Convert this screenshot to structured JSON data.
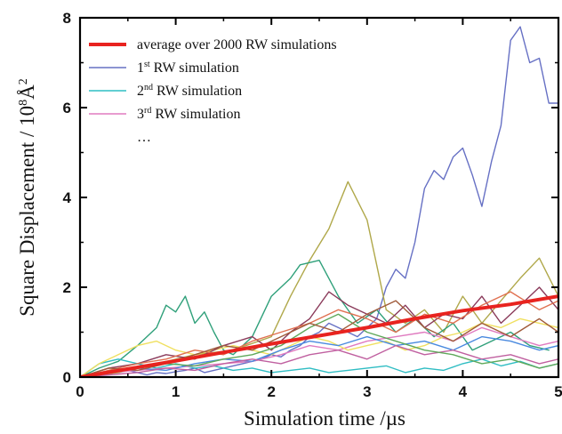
{
  "chart_data": {
    "type": "line",
    "title": "",
    "xlabel": "Simulation time /µs",
    "ylabel_main": "Square Displacement / 10",
    "ylabel_sup": "8",
    "ylabel_unit": "Å",
    "ylabel_unit_sup": "2",
    "xlim": [
      0,
      5
    ],
    "ylim": [
      0,
      8
    ],
    "x_ticks": [
      "0",
      "1",
      "2",
      "3",
      "4",
      "5"
    ],
    "y_ticks": [
      "0",
      "2",
      "4",
      "6",
      "8"
    ],
    "legend_position": "top-left",
    "legend_entries": [
      {
        "pre": "average over 2000 RW simulations",
        "sup": "",
        "post": "",
        "color": "#e8231f"
      },
      {
        "pre": "1",
        "sup": "st",
        "post": " RW simulation",
        "color": "#6670c4"
      },
      {
        "pre": "2",
        "sup": "nd",
        "post": " RW simulation",
        "color": "#2fbdc3"
      },
      {
        "pre": "3",
        "sup": "rd",
        "post": " RW simulation",
        "color": "#e07bc0"
      },
      {
        "pre": "…",
        "sup": "",
        "post": "",
        "color": ""
      }
    ],
    "series": [
      {
        "name": "average over 2000 RW simulations",
        "color": "#e8231f",
        "width": 4,
        "x": [
          0,
          0.5,
          1,
          1.5,
          2,
          2.5,
          3,
          3.5,
          4,
          4.5,
          5
        ],
        "y": [
          0,
          0.18,
          0.36,
          0.55,
          0.74,
          0.92,
          1.1,
          1.3,
          1.48,
          1.62,
          1.8
        ]
      },
      {
        "name": "1st RW simulation",
        "color": "#6670c4",
        "width": 1.4,
        "x": [
          0,
          0.1,
          0.2,
          0.3,
          0.4,
          0.5,
          0.6,
          0.7,
          0.8,
          0.9,
          1.0,
          1.1,
          1.2,
          1.3,
          1.4,
          1.5,
          1.6,
          1.7,
          1.8,
          1.9,
          2.0,
          2.1,
          2.2,
          2.3,
          2.4,
          2.5,
          2.6,
          2.7,
          2.8,
          2.9,
          3.0,
          3.1,
          3.2,
          3.3,
          3.4,
          3.5,
          3.6,
          3.7,
          3.8,
          3.9,
          4.0,
          4.1,
          4.2,
          4.3,
          4.4,
          4.5,
          4.6,
          4.7,
          4.8,
          4.9,
          5.0
        ],
        "y": [
          0.0,
          0.05,
          0.08,
          0.12,
          0.1,
          0.15,
          0.1,
          0.05,
          0.1,
          0.08,
          0.12,
          0.15,
          0.2,
          0.1,
          0.15,
          0.2,
          0.25,
          0.3,
          0.35,
          0.4,
          0.5,
          0.45,
          0.6,
          0.7,
          0.9,
          1.0,
          1.2,
          1.1,
          1.0,
          0.9,
          1.1,
          1.3,
          2.0,
          2.4,
          2.2,
          3.0,
          4.2,
          4.6,
          4.4,
          4.9,
          5.1,
          4.5,
          3.8,
          4.8,
          5.6,
          7.5,
          7.8,
          7.0,
          7.1,
          6.1,
          6.1
        ]
      },
      {
        "name": "",
        "color": "#b0a84a",
        "width": 1.4,
        "x": [
          0,
          0.4,
          0.8,
          1.2,
          1.6,
          2.0,
          2.2,
          2.4,
          2.6,
          2.8,
          3.0,
          3.1,
          3.2,
          3.4,
          3.6,
          3.8,
          4.0,
          4.2,
          4.4,
          4.6,
          4.8,
          5.0
        ],
        "y": [
          0,
          0.1,
          0.3,
          0.5,
          0.6,
          0.9,
          1.8,
          2.6,
          3.3,
          4.35,
          3.5,
          2.5,
          1.5,
          1.2,
          1.5,
          1.0,
          1.8,
          1.2,
          1.7,
          2.2,
          2.65,
          1.8
        ]
      },
      {
        "name": "",
        "color": "#2fa07a",
        "width": 1.4,
        "x": [
          0,
          0.2,
          0.4,
          0.6,
          0.8,
          0.9,
          1.0,
          1.1,
          1.2,
          1.3,
          1.4,
          1.5,
          1.6,
          1.8,
          2.0,
          2.2,
          2.3,
          2.5,
          2.7,
          2.9,
          3.1,
          3.3,
          3.5,
          3.7,
          3.9,
          4.1,
          4.3,
          4.5,
          4.7,
          4.9
        ],
        "y": [
          0,
          0.2,
          0.35,
          0.7,
          1.1,
          1.6,
          1.45,
          1.8,
          1.2,
          1.45,
          1.0,
          0.6,
          0.5,
          0.9,
          1.8,
          2.2,
          2.5,
          2.6,
          1.8,
          1.2,
          1.5,
          1.0,
          1.3,
          0.9,
          1.2,
          0.6,
          0.8,
          1.0,
          0.7,
          0.6
        ]
      },
      {
        "name": "2nd RW simulation",
        "color": "#2fbdc3",
        "width": 1.4,
        "x": [
          0,
          0.2,
          0.4,
          0.6,
          0.8,
          1.0,
          1.2,
          1.4,
          1.6,
          1.8,
          2.0,
          2.2,
          2.4,
          2.6,
          2.8,
          3.0,
          3.2,
          3.4,
          3.6,
          3.8,
          4.0,
          4.2,
          4.4,
          4.6,
          4.8,
          5.0
        ],
        "y": [
          0,
          0.3,
          0.4,
          0.3,
          0.2,
          0.3,
          0.2,
          0.25,
          0.15,
          0.2,
          0.1,
          0.15,
          0.2,
          0.1,
          0.15,
          0.2,
          0.25,
          0.1,
          0.2,
          0.15,
          0.3,
          0.4,
          0.25,
          0.35,
          0.2,
          0.3
        ]
      },
      {
        "name": "3rd RW simulation",
        "color": "#e07bc0",
        "width": 1.4,
        "x": [
          0,
          0.3,
          0.6,
          0.9,
          1.2,
          1.5,
          1.8,
          2.1,
          2.4,
          2.7,
          3.0,
          3.3,
          3.6,
          3.9,
          4.2,
          4.5,
          4.8,
          5.0
        ],
        "y": [
          0,
          0.1,
          0.15,
          0.2,
          0.25,
          0.3,
          0.35,
          0.5,
          0.7,
          0.6,
          0.8,
          0.9,
          1.0,
          0.8,
          1.1,
          0.9,
          0.7,
          0.8
        ]
      },
      {
        "name": "",
        "color": "#f0e060",
        "width": 1.4,
        "x": [
          0,
          0.2,
          0.4,
          0.6,
          0.8,
          1.0,
          1.2,
          1.4,
          1.6,
          1.8,
          2.0,
          2.2,
          2.4,
          2.6,
          2.8,
          3.0,
          3.2,
          3.4,
          3.6,
          3.8,
          4.0,
          4.2,
          4.4,
          4.6,
          4.8,
          5.0
        ],
        "y": [
          0,
          0.3,
          0.5,
          0.7,
          0.8,
          0.6,
          0.5,
          0.6,
          0.7,
          0.6,
          0.5,
          0.7,
          0.9,
          0.8,
          0.6,
          0.7,
          0.8,
          0.6,
          0.7,
          0.9,
          1.0,
          1.2,
          1.1,
          1.3,
          1.2,
          1.1
        ]
      },
      {
        "name": "",
        "color": "#8a3a5a",
        "width": 1.4,
        "x": [
          0,
          0.3,
          0.6,
          0.9,
          1.2,
          1.5,
          1.8,
          2.0,
          2.2,
          2.4,
          2.6,
          2.8,
          3.0,
          3.2,
          3.4,
          3.6,
          3.8,
          4.0,
          4.2,
          4.4,
          4.6,
          4.8,
          5.0
        ],
        "y": [
          0,
          0.2,
          0.3,
          0.5,
          0.4,
          0.7,
          0.9,
          0.6,
          1.0,
          1.3,
          1.9,
          1.6,
          1.4,
          1.2,
          1.6,
          1.1,
          1.4,
          1.3,
          1.8,
          1.2,
          1.6,
          2.0,
          1.5
        ]
      },
      {
        "name": "",
        "color": "#e07050",
        "width": 1.4,
        "x": [
          0,
          0.3,
          0.6,
          0.9,
          1.2,
          1.5,
          1.8,
          2.1,
          2.4,
          2.7,
          3.0,
          3.3,
          3.6,
          3.9,
          4.2,
          4.5,
          4.8,
          5.0
        ],
        "y": [
          0,
          0.15,
          0.3,
          0.4,
          0.6,
          0.5,
          0.8,
          1.0,
          1.2,
          1.5,
          1.3,
          1.0,
          1.4,
          1.2,
          1.6,
          1.9,
          1.5,
          1.7
        ]
      },
      {
        "name": "",
        "color": "#4a8adf",
        "width": 1.4,
        "x": [
          0,
          0.3,
          0.6,
          0.9,
          1.2,
          1.5,
          1.8,
          2.1,
          2.4,
          2.7,
          3.0,
          3.3,
          3.6,
          3.9,
          4.2,
          4.5,
          4.8,
          5.0
        ],
        "y": [
          0,
          0.1,
          0.2,
          0.15,
          0.3,
          0.4,
          0.35,
          0.6,
          0.8,
          0.7,
          0.9,
          0.7,
          0.8,
          0.6,
          0.9,
          0.8,
          0.6,
          0.7
        ]
      },
      {
        "name": "",
        "color": "#c060a0",
        "width": 1.4,
        "x": [
          0,
          0.3,
          0.6,
          0.9,
          1.2,
          1.5,
          1.8,
          2.1,
          2.4,
          2.7,
          3.0,
          3.3,
          3.6,
          3.9,
          4.2,
          4.5,
          4.8,
          5.0
        ],
        "y": [
          0,
          0.05,
          0.1,
          0.2,
          0.15,
          0.3,
          0.4,
          0.3,
          0.5,
          0.6,
          0.4,
          0.7,
          0.5,
          0.6,
          0.4,
          0.5,
          0.3,
          0.4
        ]
      },
      {
        "name": "",
        "color": "#5fa85a",
        "width": 1.4,
        "x": [
          0,
          0.3,
          0.6,
          0.9,
          1.2,
          1.5,
          1.8,
          2.1,
          2.4,
          2.7,
          3.0,
          3.3,
          3.6,
          3.9,
          4.2,
          4.5,
          4.8,
          5.0
        ],
        "y": [
          0,
          0.1,
          0.2,
          0.3,
          0.25,
          0.4,
          0.5,
          0.7,
          1.1,
          1.4,
          1.0,
          0.8,
          0.6,
          0.5,
          0.3,
          0.4,
          0.2,
          0.3
        ]
      },
      {
        "name": "",
        "color": "#a05a3a",
        "width": 1.4,
        "x": [
          0,
          0.3,
          0.6,
          0.9,
          1.2,
          1.5,
          1.8,
          2.1,
          2.4,
          2.7,
          3.0,
          3.3,
          3.6,
          3.9,
          4.2,
          4.5,
          4.8,
          5.0
        ],
        "y": [
          0,
          0.2,
          0.15,
          0.3,
          0.5,
          0.7,
          0.6,
          0.9,
          1.2,
          1.0,
          1.4,
          1.7,
          1.1,
          0.8,
          1.2,
          0.9,
          1.3,
          1.0
        ]
      }
    ]
  }
}
